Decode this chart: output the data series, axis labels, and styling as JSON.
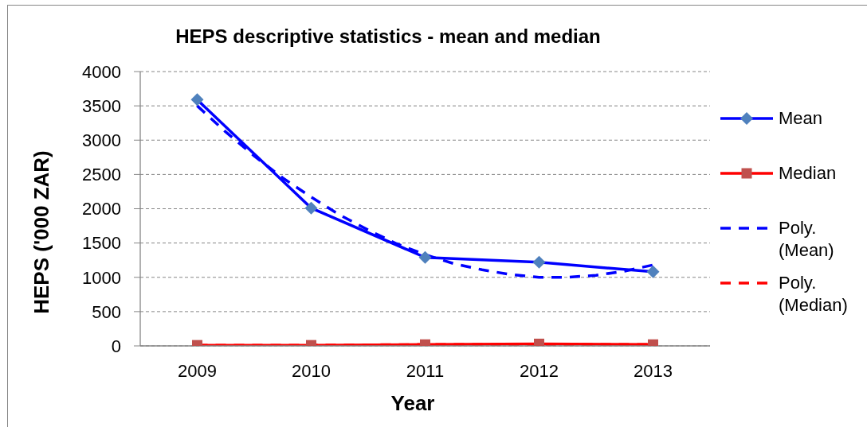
{
  "chart_data": {
    "type": "line",
    "title": "HEPS descriptive statistics - mean and median",
    "xlabel": "Year",
    "ylabel": "HEPS ('000 ZAR)",
    "x": [
      2009,
      2010,
      2011,
      2012,
      2013
    ],
    "xlim": [
      2008.5,
      2013.5
    ],
    "xticks": [
      2009,
      2010,
      2011,
      2012,
      2013
    ],
    "ylim": [
      0,
      4000
    ],
    "yticks": [
      0,
      500,
      1000,
      1500,
      2000,
      2500,
      3000,
      3500,
      4000
    ],
    "grid": "y",
    "legend": "right",
    "series": [
      {
        "name": "Mean",
        "color": "#0000ff",
        "colors": [
          "#4f81bd",
          "#4f81bd",
          "#4f81bd",
          "#4f81bd",
          "#4f81bd"
        ],
        "marker": "diamond",
        "line_style": "solid",
        "values": [
          3590,
          2010,
          1290,
          1220,
          1080
        ]
      },
      {
        "name": "Median",
        "color": "#ff0000",
        "colors": [
          "#c0504d",
          "#c0504d",
          "#c0504d",
          "#c0504d",
          "#c0504d"
        ],
        "marker": "square",
        "line_style": "solid",
        "values": [
          10,
          10,
          20,
          30,
          20
        ]
      },
      {
        "name": "Poly. (Mean)",
        "color": "#0000ff",
        "marker": "none",
        "line_style": "dashed",
        "x": [
          2009,
          2009.25,
          2009.5,
          2009.75,
          2010,
          2010.25,
          2010.5,
          2010.75,
          2011,
          2011.25,
          2011.5,
          2011.75,
          2012,
          2012.25,
          2012.5,
          2012.75,
          2013
        ],
        "values": [
          3500,
          3120,
          2770,
          2450,
          2170,
          1910,
          1690,
          1490,
          1330,
          1200,
          1110,
          1040,
          1000,
          1000,
          1030,
          1090,
          1180
        ]
      },
      {
        "name": "Poly. (Median)",
        "color": "#ff0000",
        "marker": "none",
        "line_style": "dashed",
        "x": [
          2009,
          2010,
          2011,
          2012,
          2013
        ],
        "values": [
          10,
          10,
          20,
          20,
          20
        ]
      }
    ]
  }
}
